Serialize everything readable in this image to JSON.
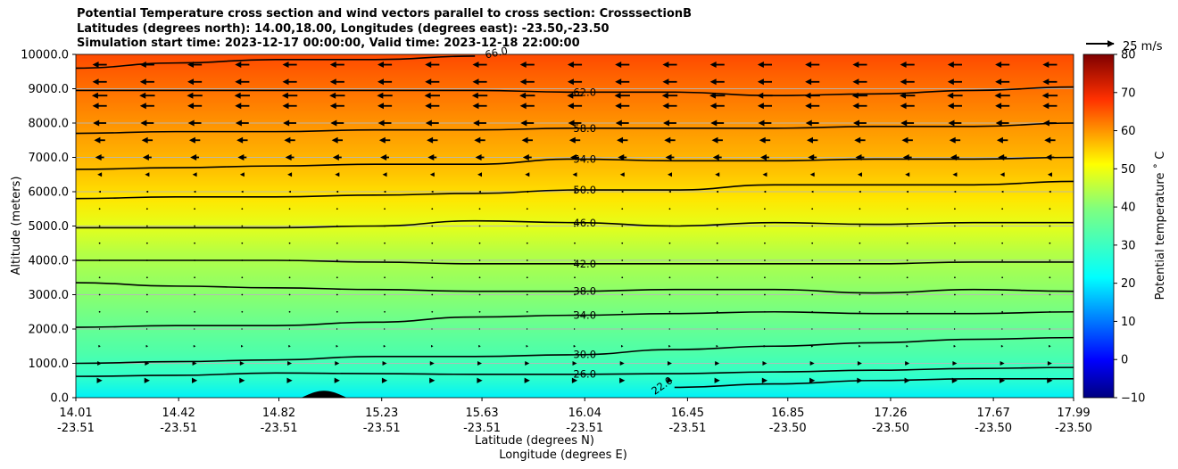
{
  "title_lines": [
    "Potential Temperature cross section and wind vectors parallel to cross section: CrosssectionB",
    "Latitudes (degrees north): 14.00,18.00, Longitudes (degrees east): -23.50,-23.50",
    "Simulation start time: 2023-12-17 00:00:00, Valid time: 2023-12-18 22:00:00"
  ],
  "chart_data": {
    "type": "heatmap",
    "subtype": "filled contour with contour lines and wind vectors",
    "ylabel": "Altitude (meters)",
    "xlabel_lat": "Latitude (degrees N)",
    "xlabel_lon": "Longitude (degrees E)",
    "ylim": [
      0,
      10000
    ],
    "y_ticks": [
      "0.0",
      "1000.0",
      "2000.0",
      "3000.0",
      "4000.0",
      "5000.0",
      "6000.0",
      "7000.0",
      "8000.0",
      "9000.0",
      "10000.0"
    ],
    "x_range": [
      14.01,
      17.99
    ],
    "x_ticks": [
      {
        "lat": "14.01",
        "lon": "-23.51"
      },
      {
        "lat": "14.42",
        "lon": "-23.51"
      },
      {
        "lat": "14.82",
        "lon": "-23.51"
      },
      {
        "lat": "15.23",
        "lon": "-23.51"
      },
      {
        "lat": "15.63",
        "lon": "-23.51"
      },
      {
        "lat": "16.04",
        "lon": "-23.51"
      },
      {
        "lat": "16.45",
        "lon": "-23.51"
      },
      {
        "lat": "16.85",
        "lon": "-23.50"
      },
      {
        "lat": "17.26",
        "lon": "-23.50"
      },
      {
        "lat": "17.67",
        "lon": "-23.50"
      },
      {
        "lat": "17.99",
        "lon": "-23.50"
      }
    ],
    "grid": "horizontal",
    "colorbar": {
      "label": "Potential temperature ˚ C",
      "range": [
        -10,
        80
      ],
      "ticks": [
        "−10",
        "0",
        "10",
        "20",
        "30",
        "40",
        "50",
        "60",
        "70",
        "80"
      ],
      "colormap": "jet"
    },
    "contours": [
      {
        "label": "22.0",
        "heights": [
          null,
          null,
          null,
          null,
          null,
          null,
          300,
          400,
          500,
          550,
          550
        ]
      },
      {
        "label": "26.0",
        "heights": [
          620,
          650,
          720,
          700,
          680,
          680,
          700,
          750,
          800,
          850,
          880
        ]
      },
      {
        "label": "30.0",
        "heights": [
          1000,
          1050,
          1100,
          1200,
          1200,
          1250,
          1400,
          1500,
          1600,
          1700,
          1750
        ]
      },
      {
        "label": "34.0",
        "heights": [
          2050,
          2100,
          2100,
          2200,
          2350,
          2400,
          2450,
          2500,
          2450,
          2450,
          2500
        ]
      },
      {
        "label": "38.0",
        "heights": [
          3350,
          3250,
          3200,
          3150,
          3100,
          3100,
          3150,
          3150,
          3050,
          3150,
          3100
        ]
      },
      {
        "label": "42.0",
        "heights": [
          4000,
          4000,
          4000,
          3950,
          3900,
          3900,
          3900,
          3900,
          3900,
          3950,
          3950
        ]
      },
      {
        "label": "46.0",
        "heights": [
          4950,
          4950,
          4950,
          5000,
          5150,
          5100,
          5000,
          5100,
          5050,
          5100,
          5100
        ]
      },
      {
        "label": "50.0",
        "heights": [
          5800,
          5850,
          5850,
          5900,
          5950,
          6050,
          6050,
          6200,
          6200,
          6200,
          6300
        ]
      },
      {
        "label": "54.0",
        "heights": [
          6650,
          6700,
          6750,
          6800,
          6800,
          6950,
          6900,
          6900,
          6950,
          6950,
          7000
        ]
      },
      {
        "label": "58.0",
        "heights": [
          7700,
          7750,
          7750,
          7800,
          7800,
          7850,
          7850,
          7850,
          7900,
          7900,
          8000
        ]
      },
      {
        "label": "62.0",
        "heights": [
          8950,
          8950,
          8950,
          8950,
          8950,
          8900,
          8900,
          8800,
          8850,
          8950,
          9050
        ]
      },
      {
        "label": "66.0",
        "heights": [
          9600,
          9750,
          9850,
          9850,
          9950,
          null,
          null,
          null,
          null,
          null,
          null
        ]
      }
    ],
    "wind_reference": {
      "label": "25 m/s",
      "speed": 25
    },
    "wind_profile": [
      {
        "altitude": 9700,
        "u": -13
      },
      {
        "altitude": 9200,
        "u": -13
      },
      {
        "altitude": 8800,
        "u": -14
      },
      {
        "altitude": 8500,
        "u": -13
      },
      {
        "altitude": 8000,
        "u": -12
      },
      {
        "altitude": 7500,
        "u": -10
      },
      {
        "altitude": 7000,
        "u": -8
      },
      {
        "altitude": 6500,
        "u": -4
      },
      {
        "altitude": 6000,
        "u": -2
      },
      {
        "altitude": 5500,
        "u": -0.5
      },
      {
        "altitude": 5000,
        "u": -0.3
      },
      {
        "altitude": 4500,
        "u": 0.3
      },
      {
        "altitude": 4000,
        "u": 0.3
      },
      {
        "altitude": 3500,
        "u": 0.3
      },
      {
        "altitude": 3000,
        "u": 0.3
      },
      {
        "altitude": 2500,
        "u": 0.5
      },
      {
        "altitude": 2000,
        "u": 1
      },
      {
        "altitude": 1500,
        "u": 2
      },
      {
        "altitude": 1000,
        "u": 4
      },
      {
        "altitude": 500,
        "u": 5
      }
    ],
    "terrain": {
      "center_lat": 15.0,
      "half_width": 0.09,
      "peak_altitude": 200
    }
  }
}
